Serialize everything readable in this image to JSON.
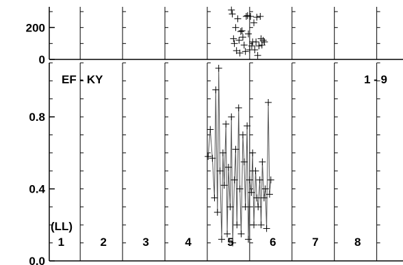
{
  "chart_data": [
    {
      "panel": "top",
      "type": "scatter",
      "marker": "plus",
      "yticks": [
        0,
        200
      ],
      "ytick_labels": [
        "0",
        "200"
      ],
      "ylim": [
        0,
        330
      ],
      "xlim": [
        0.7,
        9.05
      ],
      "grid": false,
      "vertical_dividers": [
        1.43,
        2.43,
        3.43,
        4.43,
        5.43,
        6.43,
        7.43,
        8.43
      ],
      "points": [
        {
          "x": 5.0,
          "y": 310
        },
        {
          "x": 5.02,
          "y": 285
        },
        {
          "x": 5.05,
          "y": 130
        },
        {
          "x": 5.07,
          "y": 100
        },
        {
          "x": 5.1,
          "y": 200
        },
        {
          "x": 5.12,
          "y": 55
        },
        {
          "x": 5.15,
          "y": 255
        },
        {
          "x": 5.18,
          "y": 120
        },
        {
          "x": 5.2,
          "y": 40
        },
        {
          "x": 5.22,
          "y": 175
        },
        {
          "x": 5.25,
          "y": 180
        },
        {
          "x": 5.27,
          "y": 140
        },
        {
          "x": 5.3,
          "y": 90
        },
        {
          "x": 5.33,
          "y": 50
        },
        {
          "x": 5.35,
          "y": 270
        },
        {
          "x": 5.38,
          "y": 275
        },
        {
          "x": 5.4,
          "y": 160
        },
        {
          "x": 5.43,
          "y": 60
        },
        {
          "x": 5.45,
          "y": 270
        },
        {
          "x": 5.48,
          "y": 85
        },
        {
          "x": 5.5,
          "y": 110
        },
        {
          "x": 5.53,
          "y": 230
        },
        {
          "x": 5.55,
          "y": 60
        },
        {
          "x": 5.58,
          "y": 110
        },
        {
          "x": 5.6,
          "y": 265
        },
        {
          "x": 5.62,
          "y": 25
        },
        {
          "x": 5.65,
          "y": 85
        },
        {
          "x": 5.68,
          "y": 270
        },
        {
          "x": 5.7,
          "y": 130
        },
        {
          "x": 5.72,
          "y": 90
        },
        {
          "x": 5.75,
          "y": 120
        },
        {
          "x": 5.78,
          "y": 110
        }
      ]
    },
    {
      "panel": "main",
      "type": "line",
      "marker": "plus",
      "title": "EF - KY",
      "annotation_right": "1 - 9",
      "annotation_left": "(LL)",
      "yticks": [
        0.0,
        0.4,
        0.8
      ],
      "ytick_labels": [
        "0.0",
        "0.4",
        "0.8"
      ],
      "ylim": [
        0.0,
        1.1
      ],
      "xlim": [
        0.7,
        9.05
      ],
      "grid": false,
      "vertical_dividers": [
        1.43,
        2.43,
        3.43,
        4.43,
        5.43,
        6.43,
        7.43,
        8.43
      ],
      "column_labels": [
        {
          "x": 1,
          "text": "1"
        },
        {
          "x": 2,
          "text": "2"
        },
        {
          "x": 3,
          "text": "3"
        },
        {
          "x": 4,
          "text": "4"
        },
        {
          "x": 5,
          "text": "5"
        },
        {
          "x": 6,
          "text": "6"
        },
        {
          "x": 7,
          "text": "7"
        },
        {
          "x": 8,
          "text": "8"
        }
      ],
      "series": [
        {
          "x": [
            4.45,
            4.5,
            4.55,
            4.6,
            4.63,
            4.67,
            4.7,
            4.73,
            4.77,
            4.8,
            4.83,
            4.87,
            4.9,
            4.93,
            4.97,
            5.0,
            5.03,
            5.07,
            5.1,
            5.13,
            5.17,
            5.2,
            5.23,
            5.27,
            5.3,
            5.33,
            5.37,
            5.4,
            5.43,
            5.47,
            5.5,
            5.53,
            5.57,
            5.6,
            5.63,
            5.67,
            5.7,
            5.73,
            5.77,
            5.8,
            5.83,
            5.87,
            5.9,
            5.93
          ],
          "y": [
            0.58,
            0.73,
            0.57,
            0.35,
            0.95,
            0.27,
            1.07,
            0.5,
            0.12,
            0.6,
            0.42,
            0.76,
            0.15,
            0.52,
            0.3,
            0.8,
            0.1,
            0.45,
            0.62,
            0.2,
            0.85,
            0.4,
            0.15,
            0.7,
            0.55,
            0.3,
            0.75,
            0.12,
            0.45,
            0.38,
            0.6,
            0.2,
            0.5,
            0.35,
            0.3,
            0.45,
            0.2,
            0.55,
            0.35,
            0.4,
            0.18,
            0.88,
            0.37,
            0.45
          ]
        }
      ]
    }
  ]
}
